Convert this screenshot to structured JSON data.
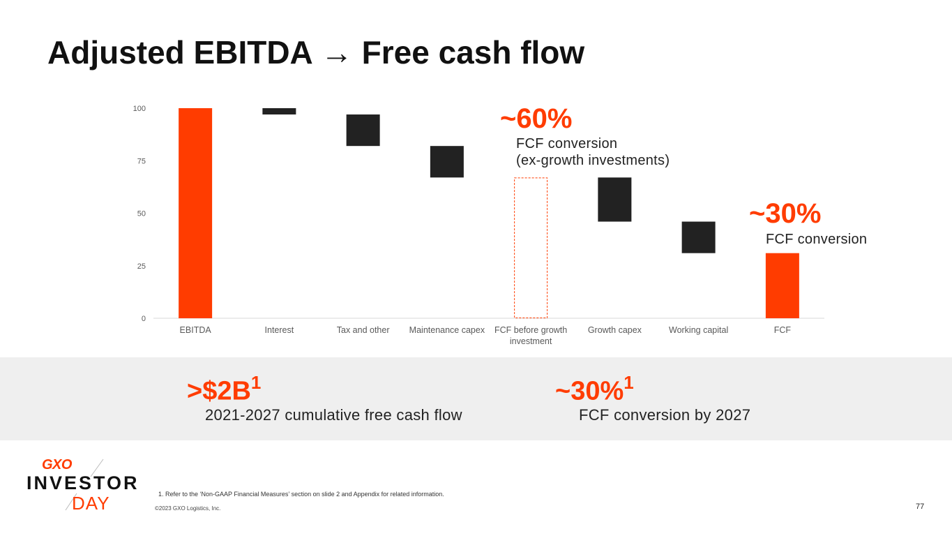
{
  "title": "Adjusted EBITDA → Free cash flow",
  "callouts": {
    "left_value": "~60%",
    "left_line1": "FCF conversion",
    "left_line2": "(ex-growth investments)",
    "right_value": "~30%",
    "right_line1": "FCF conversion"
  },
  "kpis": [
    {
      "value": ">$2B",
      "sup": "1",
      "label": "2021-2027 cumulative free cash flow"
    },
    {
      "value": "~30%",
      "sup": "1",
      "label": "FCF conversion by 2027"
    }
  ],
  "footnote": "1. Refer to the ‘Non-GAAP Financial Measures’ section on slide 2 and Appendix for related information.",
  "copyright": "©2023 GXO Logistics, Inc.",
  "page_number": "77",
  "logo": {
    "brand": "GXO",
    "line1": "INVESTOR",
    "line2": "DAY"
  },
  "colors": {
    "accent": "#ff3c00",
    "dark": "#222222",
    "band": "#efefef"
  },
  "chart_data": {
    "type": "bar",
    "subtype": "waterfall",
    "categories": [
      "EBITDA",
      "Interest",
      "Tax and other",
      "Maintenance capex",
      "FCF before growth investment",
      "Growth capex",
      "Working capital",
      "FCF"
    ],
    "category_label_lines": [
      [
        "EBITDA"
      ],
      [
        "Interest"
      ],
      [
        "Tax and other"
      ],
      [
        "Maintenance capex"
      ],
      [
        "FCF before growth",
        "investment"
      ],
      [
        "Growth capex"
      ],
      [
        "Working capital"
      ],
      [
        "FCF"
      ]
    ],
    "bars": [
      {
        "category": "EBITDA",
        "kind": "total",
        "start": 0,
        "end": 100
      },
      {
        "category": "Interest",
        "kind": "decrease",
        "start": 100,
        "end": 97
      },
      {
        "category": "Tax and other",
        "kind": "decrease",
        "start": 97,
        "end": 82
      },
      {
        "category": "Maintenance capex",
        "kind": "decrease",
        "start": 82,
        "end": 67
      },
      {
        "category": "FCF before growth investment",
        "kind": "subtotal-outline",
        "start": 0,
        "end": 67
      },
      {
        "category": "Growth capex",
        "kind": "decrease",
        "start": 67,
        "end": 46
      },
      {
        "category": "Working capital",
        "kind": "decrease",
        "start": 46,
        "end": 31
      },
      {
        "category": "FCF",
        "kind": "total",
        "start": 0,
        "end": 31
      }
    ],
    "ylim": [
      0,
      100
    ],
    "yticks": [
      0,
      25,
      50,
      75,
      100
    ],
    "grid": false,
    "title": "",
    "xlabel": "",
    "ylabel": ""
  }
}
